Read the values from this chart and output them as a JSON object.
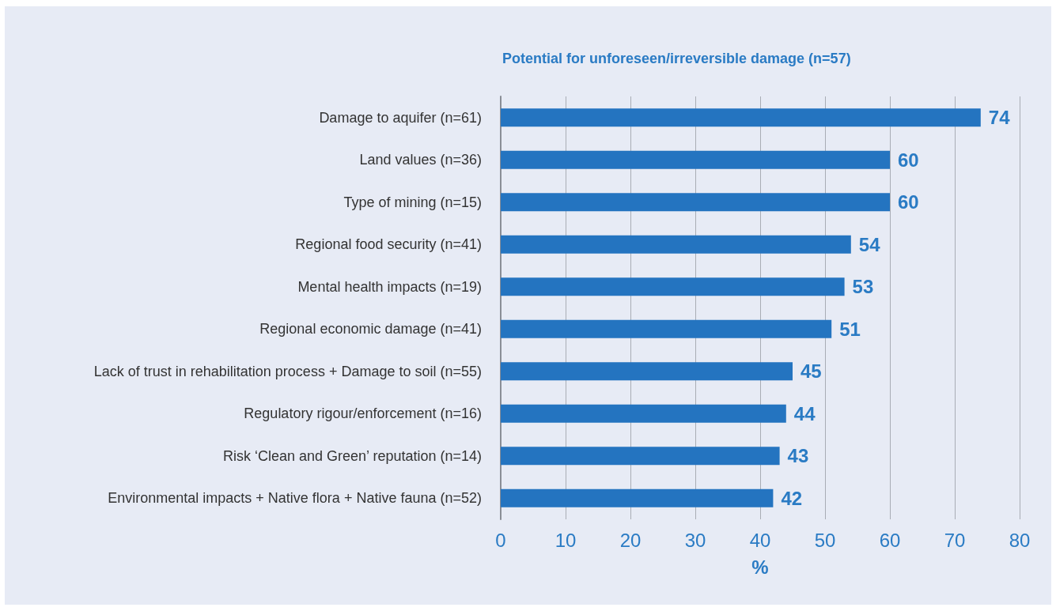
{
  "chart_data": {
    "type": "bar",
    "orientation": "horizontal",
    "title": "Potential for unforeseen/irreversible damage (n=57)",
    "xlabel": "%",
    "categories": [
      "Damage to aquifer (n=61)",
      "Land values (n=36)",
      "Type of mining (n=15)",
      "Regional food security (n=41)",
      "Mental health impacts (n=19)",
      "Regional economic damage (n=41)",
      "Lack of trust in rehabilitation process + Damage to soil (n=55)",
      "Regulatory rigour/enforcement (n=16)",
      "Risk ‘Clean and Green’ reputation (n=14)",
      "Environmental impacts + Native flora + Native fauna (n=52)"
    ],
    "values": [
      74,
      60,
      60,
      54,
      53,
      51,
      45,
      44,
      43,
      42
    ],
    "color": "#2474c0",
    "xlim": [
      0,
      80
    ],
    "xticks": [
      0,
      10,
      20,
      30,
      40,
      50,
      60,
      70,
      80
    ],
    "grid": "x",
    "data_labels": true
  }
}
